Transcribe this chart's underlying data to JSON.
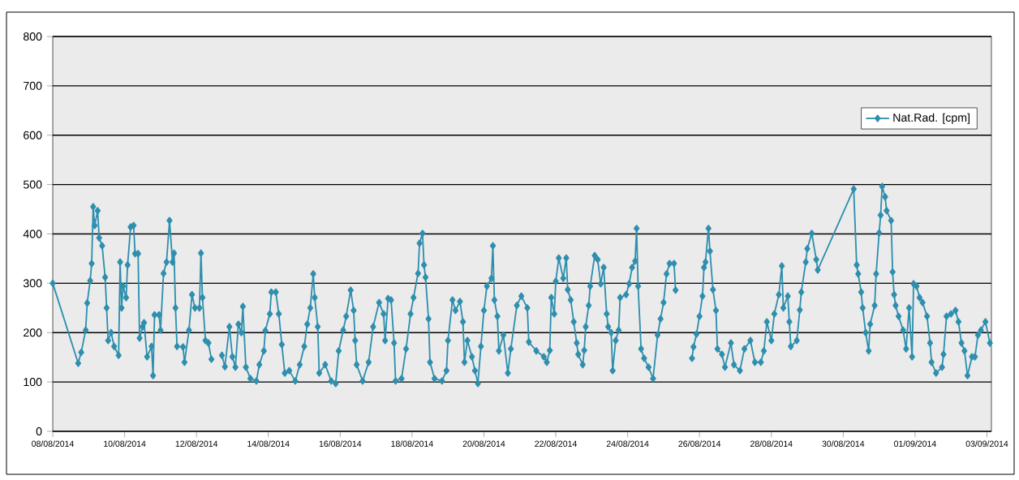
{
  "chart_data": {
    "type": "line",
    "x": [
      "2014-08-08T00:00",
      "2014-08-08T17:00",
      "2014-08-08T19:00",
      "2014-08-08T22:00",
      "2014-08-08T23:00",
      "2014-08-09T01:00",
      "2014-08-09T02:00",
      "2014-08-09T03:00",
      "2014-08-09T04:00",
      "2014-08-09T06:00",
      "2014-08-09T07:00",
      "2014-08-09T09:00",
      "2014-08-09T11:00",
      "2014-08-09T12:00",
      "2014-08-09T13:00",
      "2014-08-09T15:00",
      "2014-08-09T17:00",
      "2014-08-09T20:00",
      "2014-08-09T21:00",
      "2014-08-09T22:00",
      "2014-08-09T23:00",
      "2014-08-10T01:00",
      "2014-08-10T02:00",
      "2014-08-10T04:00",
      "2014-08-10T06:00",
      "2014-08-10T07:00",
      "2014-08-10T09:00",
      "2014-08-10T10:00",
      "2014-08-10T12:00",
      "2014-08-10T13:00",
      "2014-08-10T15:00",
      "2014-08-10T18:00",
      "2014-08-10T19:00",
      "2014-08-10T20:00",
      "2014-08-10T23:00",
      "2014-08-11T00:00",
      "2014-08-11T02:00",
      "2014-08-11T04:00",
      "2014-08-11T06:00",
      "2014-08-11T08:00",
      "2014-08-11T09:00",
      "2014-08-11T10:00",
      "2014-08-11T11:00",
      "2014-08-11T15:00",
      "2014-08-11T16:00",
      "2014-08-11T19:00",
      "2014-08-11T21:00",
      "2014-08-11T23:00",
      "2014-08-12T02:00",
      "2014-08-12T03:00",
      "2014-08-12T04:00",
      "2014-08-12T06:00",
      "2014-08-12T08:00",
      "2014-08-12T10:00",
      "2014-08-12T14:00",
      "2014-08-12T17:00",
      "2014-08-12T19:00",
      "2014-08-12T22:00",
      "2014-08-13T00:00",
      "2014-08-13T02:00",
      "2014-08-13T04:00",
      "2014-08-13T06:00",
      "2014-08-13T07:00",
      "2014-08-13T09:00",
      "2014-08-13T12:00",
      "2014-08-13T16:00",
      "2014-08-13T18:00",
      "2014-08-13T21:00",
      "2014-08-13T22:00",
      "2014-08-14T01:00",
      "2014-08-14T02:00",
      "2014-08-14T05:00",
      "2014-08-14T07:00",
      "2014-08-14T09:00",
      "2014-08-14T11:00",
      "2014-08-14T14:00",
      "2014-08-14T18:00",
      "2014-08-14T21:00",
      "2014-08-15T00:00",
      "2014-08-15T02:00",
      "2014-08-15T04:00",
      "2014-08-15T06:00",
      "2014-08-15T07:00",
      "2014-08-15T09:00",
      "2014-08-15T10:00",
      "2014-08-15T14:00",
      "2014-08-15T18:00",
      "2014-08-15T21:00",
      "2014-08-15T23:00",
      "2014-08-16T02:00",
      "2014-08-16T04:00",
      "2014-08-16T07:00",
      "2014-08-16T09:00",
      "2014-08-16T10:00",
      "2014-08-16T11:00",
      "2014-08-16T15:00",
      "2014-08-16T19:00",
      "2014-08-16T22:00",
      "2014-08-17T02:00",
      "2014-08-17T05:00",
      "2014-08-17T06:00",
      "2014-08-17T08:00",
      "2014-08-17T10:00",
      "2014-08-17T12:00",
      "2014-08-17T13:00",
      "2014-08-17T17:00",
      "2014-08-17T20:00",
      "2014-08-17T23:00",
      "2014-08-18T01:00",
      "2014-08-18T04:00",
      "2014-08-18T05:00",
      "2014-08-18T07:00",
      "2014-08-18T08:00",
      "2014-08-18T09:00",
      "2014-08-18T11:00",
      "2014-08-18T12:00",
      "2014-08-18T15:00",
      "2014-08-18T20:00",
      "2014-08-18T23:00",
      "2014-08-19T00:00",
      "2014-08-19T03:00",
      "2014-08-19T05:00",
      "2014-08-19T08:00",
      "2014-08-19T10:00",
      "2014-08-19T11:00",
      "2014-08-19T13:00",
      "2014-08-19T16:00",
      "2014-08-19T18:00",
      "2014-08-19T20:00",
      "2014-08-19T22:00",
      "2014-08-20T00:00",
      "2014-08-20T02:00",
      "2014-08-20T05:00",
      "2014-08-20T06:00",
      "2014-08-20T07:00",
      "2014-08-20T09:00",
      "2014-08-20T10:00",
      "2014-08-20T13:00",
      "2014-08-20T16:00",
      "2014-08-20T18:00",
      "2014-08-20T22:00",
      "2014-08-21T01:00",
      "2014-08-21T05:00",
      "2014-08-21T06:00",
      "2014-08-21T11:00",
      "2014-08-21T16:00",
      "2014-08-21T18:00",
      "2014-08-21T20:00",
      "2014-08-21T21:00",
      "2014-08-21T23:00",
      "2014-08-22T00:00",
      "2014-08-22T02:00",
      "2014-08-22T05:00",
      "2014-08-22T07:00",
      "2014-08-22T08:00",
      "2014-08-22T10:00",
      "2014-08-22T12:00",
      "2014-08-22T14:00",
      "2014-08-22T15:00",
      "2014-08-22T18:00",
      "2014-08-22T19:00",
      "2014-08-22T20:00",
      "2014-08-22T22:00",
      "2014-08-22T23:00",
      "2014-08-23T02:00",
      "2014-08-23T04:00",
      "2014-08-23T06:00",
      "2014-08-23T08:00",
      "2014-08-23T10:00",
      "2014-08-23T11:00",
      "2014-08-23T13:00",
      "2014-08-23T14:00",
      "2014-08-23T16:00",
      "2014-08-23T18:00",
      "2014-08-23T19:00",
      "2014-08-23T23:00",
      "2014-08-24T01:00",
      "2014-08-24T03:00",
      "2014-08-24T05:00",
      "2014-08-24T06:00",
      "2014-08-24T07:00",
      "2014-08-24T09:00",
      "2014-08-24T11:00",
      "2014-08-24T14:00",
      "2014-08-24T17:00",
      "2014-08-24T20:00",
      "2014-08-24T22:00",
      "2014-08-25T00:00",
      "2014-08-25T02:00",
      "2014-08-25T04:00",
      "2014-08-25T07:00",
      "2014-08-25T08:00",
      "2014-08-25T12:00",
      "2014-08-25T19:00",
      "2014-08-25T20:00",
      "2014-08-25T22:00",
      "2014-08-26T00:00",
      "2014-08-26T02:00",
      "2014-08-26T03:00",
      "2014-08-26T04:00",
      "2014-08-26T06:00",
      "2014-08-26T07:00",
      "2014-08-26T09:00",
      "2014-08-26T11:00",
      "2014-08-26T12:00",
      "2014-08-26T15:00",
      "2014-08-26T17:00",
      "2014-08-26T21:00",
      "2014-08-26T23:00",
      "2014-08-27T03:00",
      "2014-08-27T06:00",
      "2014-08-27T10:00",
      "2014-08-27T13:00",
      "2014-08-27T17:00",
      "2014-08-27T19:00",
      "2014-08-27T21:00",
      "2014-08-28T00:00",
      "2014-08-28T02:00",
      "2014-08-28T05:00",
      "2014-08-28T07:00",
      "2014-08-28T08:00",
      "2014-08-28T11:00",
      "2014-08-28T12:00",
      "2014-08-28T13:00",
      "2014-08-28T17:00",
      "2014-08-28T19:00",
      "2014-08-28T20:00",
      "2014-08-28T23:00",
      "2014-08-29T00:00",
      "2014-08-29T03:00",
      "2014-08-29T06:00",
      "2014-08-29T07:00",
      "2014-08-30T07:00",
      "2014-08-30T09:00",
      "2014-08-30T10:00",
      "2014-08-30T12:00",
      "2014-08-30T13:00",
      "2014-08-30T15:00",
      "2014-08-30T17:00",
      "2014-08-30T18:00",
      "2014-08-30T21:00",
      "2014-08-30T22:00",
      "2014-08-31T00:00",
      "2014-08-31T01:00",
      "2014-08-31T02:00",
      "2014-08-31T04:00",
      "2014-08-31T05:00",
      "2014-08-31T08:00",
      "2014-08-31T09:00",
      "2014-08-31T10:00",
      "2014-08-31T11:00",
      "2014-08-31T13:00",
      "2014-08-31T16:00",
      "2014-08-31T18:00",
      "2014-08-31T20:00",
      "2014-08-31T22:00",
      "2014-08-31T23:00",
      "2014-09-01T01:00",
      "2014-09-01T03:00",
      "2014-09-01T05:00",
      "2014-09-01T08:00",
      "2014-09-01T10:00",
      "2014-09-01T11:00",
      "2014-09-01T14:00",
      "2014-09-01T18:00",
      "2014-09-01T19:00",
      "2014-09-01T21:00",
      "2014-09-02T00:00",
      "2014-09-02T03:00",
      "2014-09-02T05:00",
      "2014-09-02T07:00",
      "2014-09-02T09:00",
      "2014-09-02T11:00",
      "2014-09-02T14:00",
      "2014-09-02T16:00",
      "2014-09-02T18:00",
      "2014-09-02T20:00",
      "2014-09-02T23:00",
      "2014-09-03T02:00"
    ],
    "series": [
      {
        "name": "Nat.Rad. [cpm]",
        "color": "#2e8fae",
        "values": [
          300,
          138,
          160,
          205,
          260,
          305,
          340,
          455,
          417,
          447,
          392,
          376,
          312,
          250,
          184,
          200,
          172,
          154,
          343,
          250,
          294,
          271,
          337,
          414,
          417,
          360,
          360,
          189,
          212,
          220,
          151,
          172,
          113,
          236,
          236,
          205,
          320,
          343,
          427,
          343,
          361,
          250,
          172,
          171,
          140,
          205,
          277,
          250,
          250,
          361,
          271,
          184,
          179,
          146,
          null,
          154,
          131,
          212,
          151,
          130,
          217,
          200,
          253,
          130,
          107,
          102,
          135,
          163,
          204,
          238,
          282,
          282,
          238,
          176,
          118,
          123,
          102,
          135,
          172,
          217,
          250,
          319,
          271,
          212,
          118,
          135,
          102,
          97,
          163,
          205,
          233,
          286,
          245,
          184,
          135,
          102,
          140,
          212,
          261,
          238,
          184,
          269,
          266,
          179,
          102,
          107,
          167,
          238,
          271,
          320,
          381,
          401,
          337,
          312,
          228,
          140,
          107,
          102,
          123,
          184,
          266,
          245,
          263,
          222,
          140,
          184,
          151,
          123,
          97,
          172,
          245,
          294,
          310,
          376,
          266,
          233,
          163,
          195,
          118,
          167,
          255,
          274,
          250,
          181,
          163,
          151,
          140,
          164,
          271,
          238,
          304,
          351,
          310,
          351,
          287,
          266,
          222,
          179,
          156,
          135,
          164,
          212,
          255,
          294,
          356,
          348,
          299,
          332,
          238,
          212,
          200,
          123,
          184,
          205,
          271,
          277,
          299,
          332,
          345,
          411,
          294,
          167,
          148,
          130,
          107,
          195,
          228,
          261,
          319,
          340,
          340,
          286,
          null,
          148,
          171,
          197,
          233,
          274,
          332,
          343,
          411,
          365,
          287,
          245,
          167,
          156,
          130,
          179,
          135,
          123,
          167,
          184,
          140,
          140,
          163,
          222,
          184,
          238,
          277,
          335,
          250,
          274,
          222,
          172,
          184,
          246,
          282,
          343,
          370,
          401,
          348,
          327,
          491,
          337,
          319,
          282,
          250,
          200,
          163,
          217,
          255,
          319,
          402,
          438,
          496,
          475,
          447,
          427,
          323,
          277,
          255,
          233,
          205,
          167,
          250,
          151,
          299,
          294,
          271,
          261,
          233,
          179,
          140,
          118,
          130,
          156,
          233,
          238,
          245,
          222,
          179,
          163,
          113,
          151,
          151,
          195,
          205,
          222,
          179
        ]
      }
    ],
    "xlim": [
      "2014-08-08T00:00",
      "2014-09-03T03:00"
    ],
    "xticks": [
      {
        "value": "2014-08-08",
        "label": "08/08/2014"
      },
      {
        "value": "2014-08-10",
        "label": "10/08/2014"
      },
      {
        "value": "2014-08-12",
        "label": "12/08/2014"
      },
      {
        "value": "2014-08-14",
        "label": "14/08/2014"
      },
      {
        "value": "2014-08-16",
        "label": "16/08/2014"
      },
      {
        "value": "2014-08-18",
        "label": "18/08/2014"
      },
      {
        "value": "2014-08-20",
        "label": "20/08/2014"
      },
      {
        "value": "2014-08-22",
        "label": "22/08/2014"
      },
      {
        "value": "2014-08-24",
        "label": "24/08/2014"
      },
      {
        "value": "2014-08-26",
        "label": "26/08/2014"
      },
      {
        "value": "2014-08-28",
        "label": "28/08/2014"
      },
      {
        "value": "2014-08-30",
        "label": "30/08/2014"
      },
      {
        "value": "2014-09-01",
        "label": "01/09/2014"
      },
      {
        "value": "2014-09-03",
        "label": "03/09/2014"
      }
    ],
    "ylim": [
      0,
      800
    ],
    "yticks": [
      0,
      100,
      200,
      300,
      400,
      500,
      600,
      700,
      800
    ],
    "grid": "y",
    "legend": "top right",
    "marker": "diamond",
    "line_style": "solid"
  }
}
